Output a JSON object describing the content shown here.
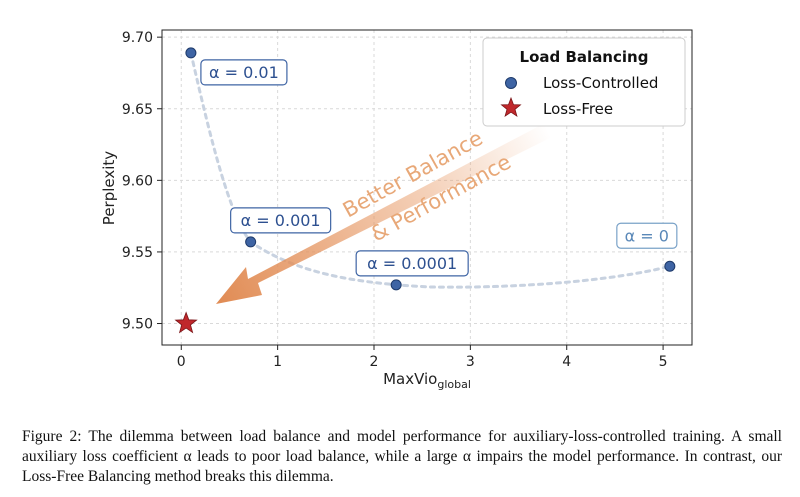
{
  "chart_data": {
    "type": "scatter",
    "xlabel_main": "MaxVio",
    "xlabel_sub": "global",
    "ylabel": "Perplexity",
    "xlim": [
      -0.2,
      5.3
    ],
    "ylim": [
      9.485,
      9.705
    ],
    "xticks": [
      0,
      1,
      2,
      3,
      4,
      5
    ],
    "yticks": [
      9.5,
      9.55,
      9.6,
      9.65,
      9.7
    ],
    "ytick_labels": [
      "9.50",
      "9.55",
      "9.60",
      "9.65",
      "9.70"
    ],
    "grid": true,
    "legend": {
      "title": "Load Balancing",
      "placement": "top-right",
      "entries": [
        "Loss-Controlled",
        "Loss-Free"
      ]
    },
    "series": [
      {
        "name": "Loss-Controlled",
        "marker": "circle",
        "color": "#3e64a4",
        "points": [
          {
            "x": 0.1,
            "y": 9.689,
            "label": "α = 0.01"
          },
          {
            "x": 0.72,
            "y": 9.557,
            "label": "α = 0.001"
          },
          {
            "x": 2.23,
            "y": 9.527,
            "label": "α = 0.0001"
          },
          {
            "x": 5.07,
            "y": 9.54,
            "label": "α = 0"
          }
        ]
      },
      {
        "name": "Loss-Free",
        "marker": "star",
        "color": "#c0282c",
        "points": [
          {
            "x": 0.05,
            "y": 9.5
          }
        ]
      }
    ],
    "arrow_annotation": [
      "Better Balance",
      "& Performance"
    ],
    "colors": {
      "loss_controlled": "#3e64a4",
      "loss_free": "#c0282c",
      "arrow": "#e89a66",
      "trend": "#c8d2e0",
      "grid": "#d9d9d9"
    }
  },
  "caption": "Figure 2: The dilemma between load balance and model performance for auxiliary-loss-controlled training. A small auxiliary loss coefficient α leads to poor load balance, while a large α impairs the model performance. In contrast, our Loss-Free Balancing method breaks this dilemma."
}
